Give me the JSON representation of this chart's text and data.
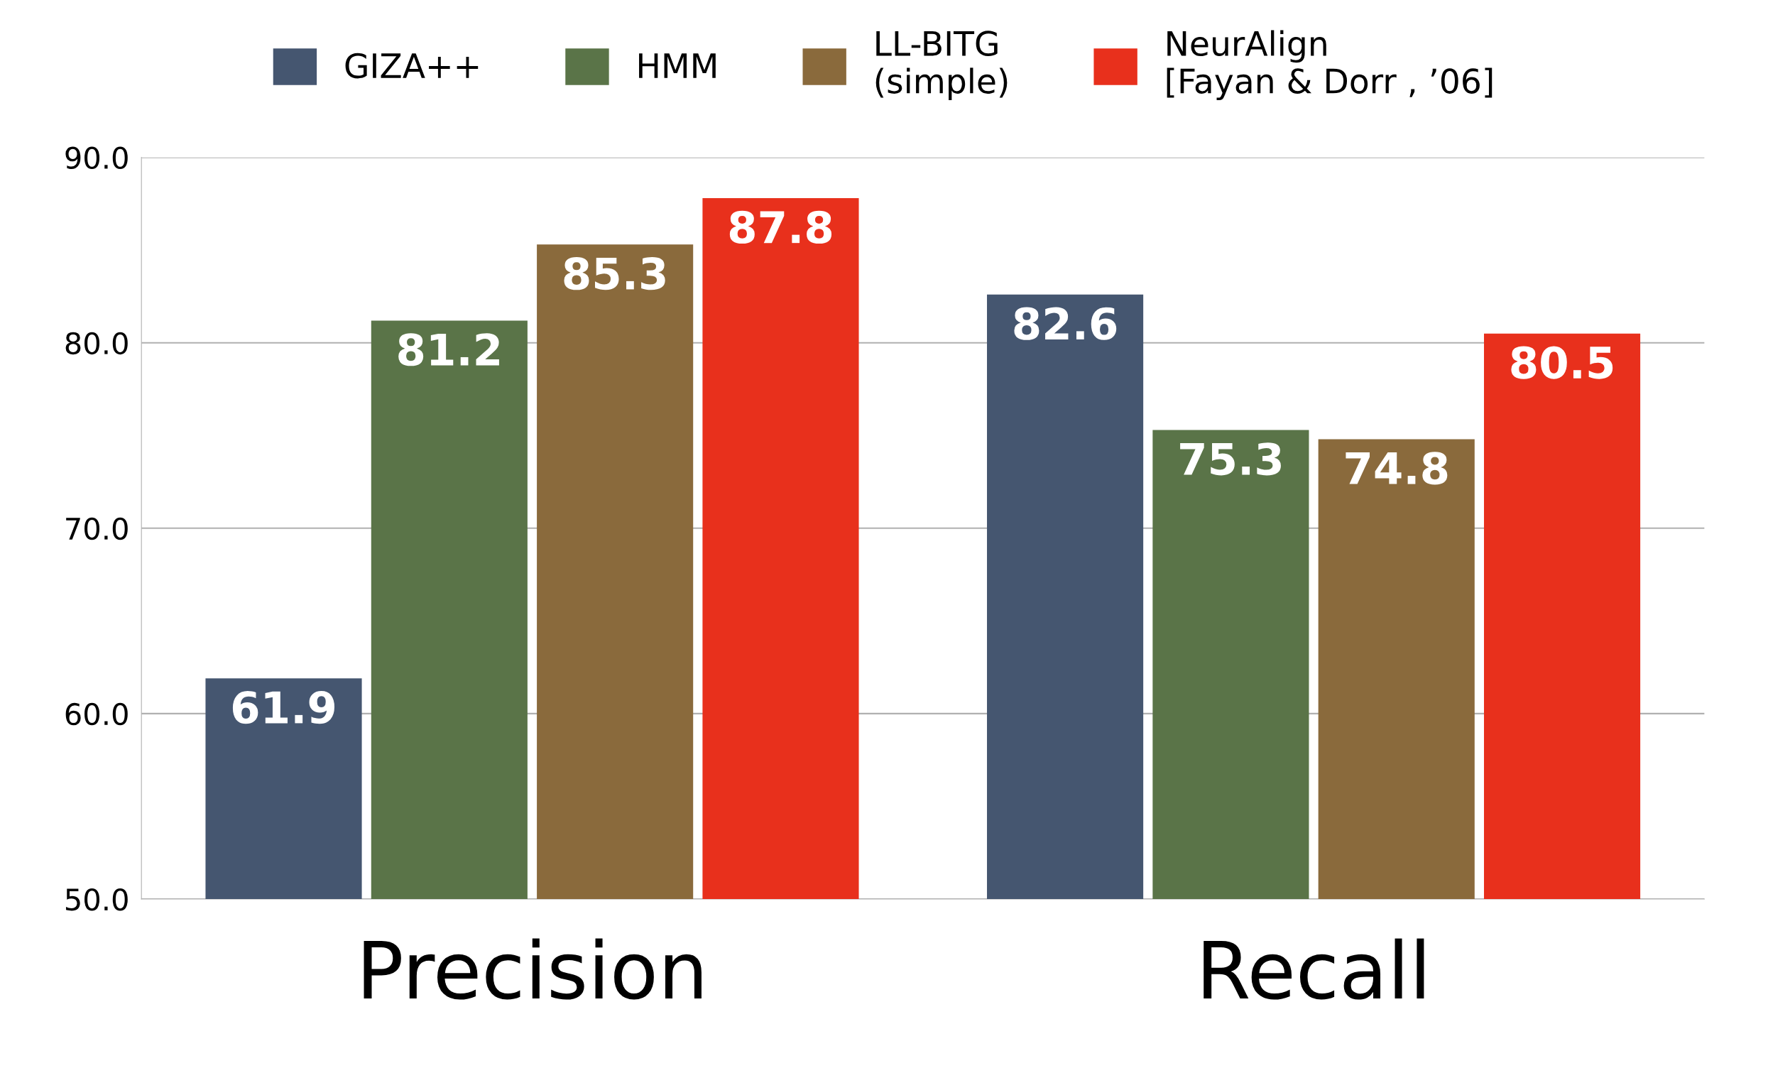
{
  "chart_data": {
    "type": "bar",
    "categories": [
      "Precision",
      "Recall"
    ],
    "series": [
      {
        "name": "GIZA++",
        "color": "#455670",
        "values": [
          61.9,
          82.6
        ]
      },
      {
        "name": "HMM",
        "color": "#5a7448",
        "values": [
          81.2,
          75.3
        ]
      },
      {
        "name": "LL-BITG\n(simple)",
        "color": "#8a6a3c",
        "values": [
          85.3,
          74.8
        ]
      },
      {
        "name": "NeurAlign\n[Fayan & Dorr , ’06]",
        "color": "#e8301c",
        "values": [
          87.8,
          80.5
        ]
      }
    ],
    "ylim": [
      50,
      90
    ],
    "yticks": [
      {
        "value": 50,
        "label": "50.0"
      },
      {
        "value": 60,
        "label": "60.0"
      },
      {
        "value": 70,
        "label": "70.0"
      },
      {
        "value": 80,
        "label": "80.0"
      },
      {
        "value": 90,
        "label": "90.0"
      }
    ],
    "grid": "y",
    "legend": "top",
    "data_labels": true
  }
}
